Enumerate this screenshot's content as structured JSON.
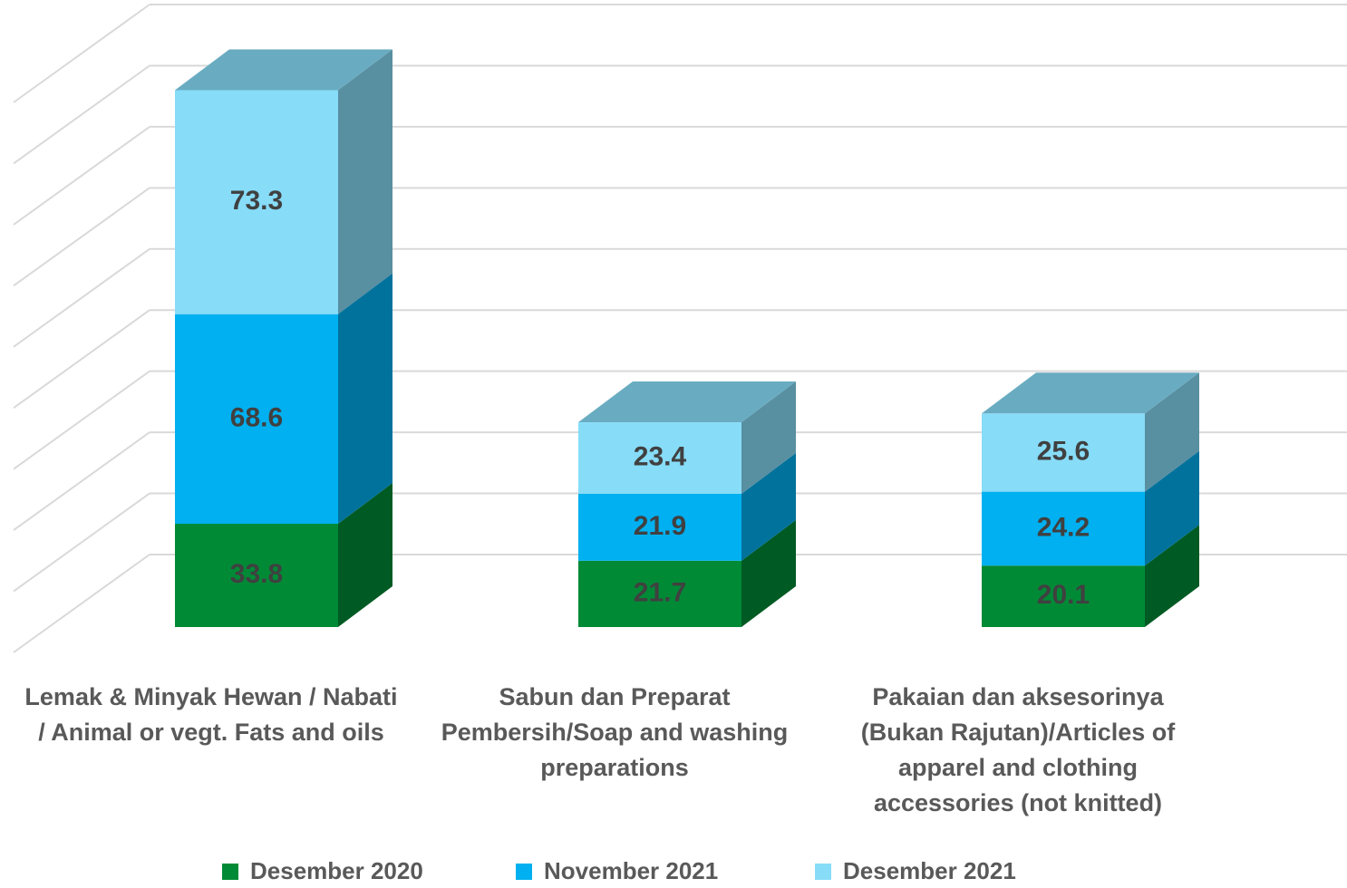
{
  "chart_data": {
    "type": "bar3d_stacked",
    "categories": [
      "Lemak & Minyak Hewan / Nabati / Animal or vegt. Fats and oils",
      "Sabun dan Preparat Pembersih/Soap and washing preparations",
      "Pakaian dan aksesorinya (Bukan Rajutan)/Articles of apparel and clothing accessories (not knitted)"
    ],
    "series": [
      {
        "name": "Desember 2020",
        "color": "#008a36",
        "values": [
          33.8,
          21.7,
          20.1
        ]
      },
      {
        "name": "November 2021",
        "color": "#00b0f0",
        "values": [
          68.6,
          21.9,
          24.2
        ]
      },
      {
        "name": "Desember 2021",
        "color": "#87dcf8",
        "values": [
          73.3,
          23.4,
          25.6
        ]
      }
    ],
    "ylim": [
      0,
      180
    ],
    "yticks": [
      0,
      20,
      40,
      60,
      80,
      100,
      120,
      140,
      160,
      180
    ],
    "grid": true
  }
}
